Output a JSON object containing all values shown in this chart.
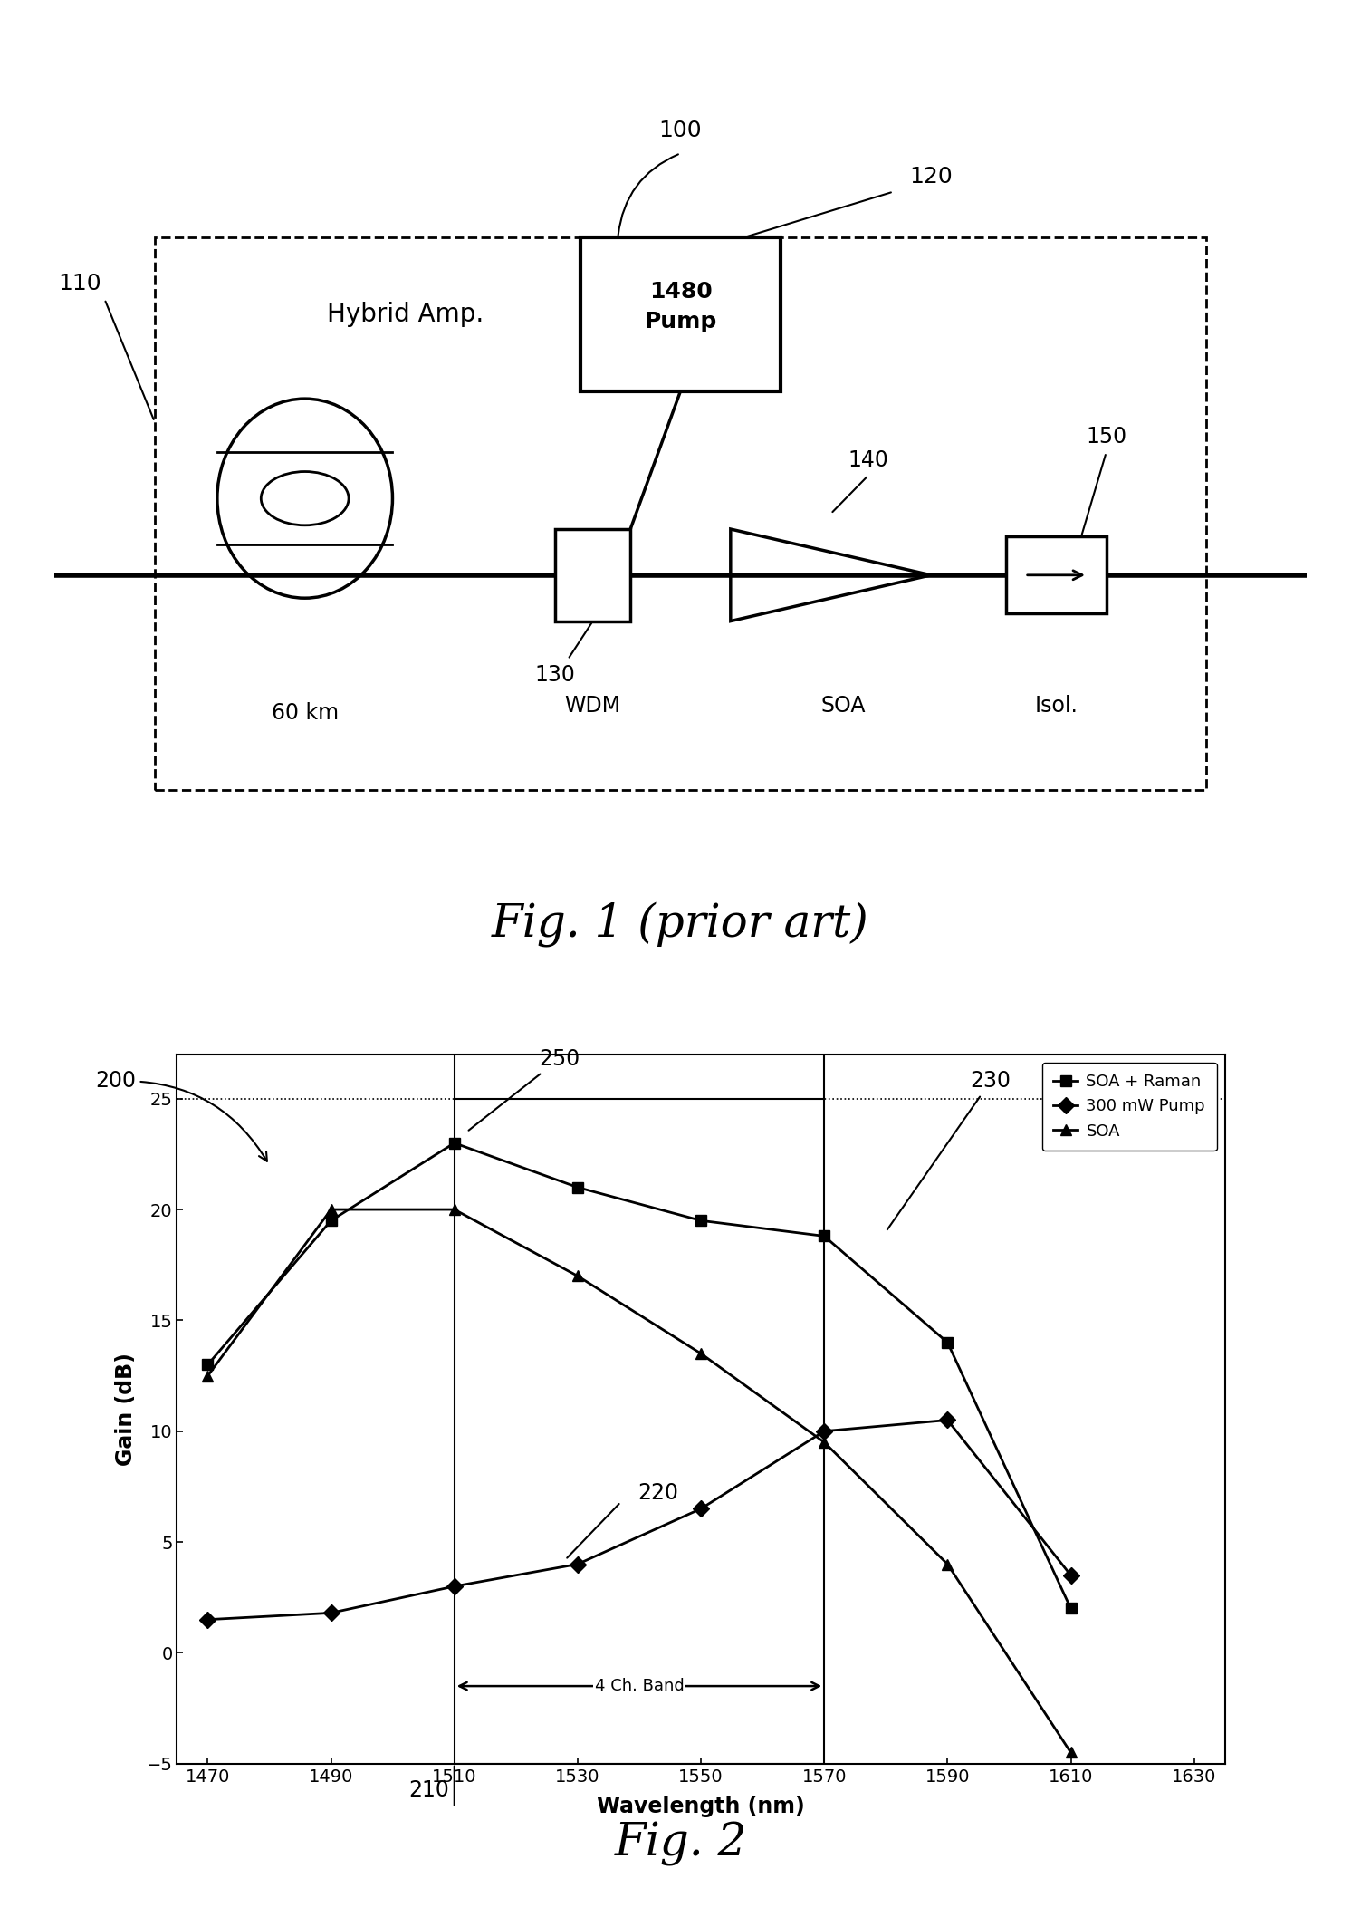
{
  "fig1_title": "Fig. 1 (prior art)",
  "fig2_title": "Fig. 2",
  "diagram": {
    "box_label": "Hybrid Amp.",
    "pump_label": "1480\nPump",
    "labels": [
      "60 km",
      "WDM",
      "SOA",
      "Isol."
    ],
    "ref_numbers": [
      "100",
      "110",
      "120",
      "130",
      "140",
      "150"
    ]
  },
  "graph": {
    "soa_raman_x": [
      1470,
      1490,
      1510,
      1530,
      1550,
      1570,
      1590,
      1610
    ],
    "soa_raman_y": [
      13.0,
      19.5,
      23.0,
      21.0,
      19.5,
      18.8,
      14.0,
      2.0
    ],
    "pump300_x": [
      1470,
      1490,
      1510,
      1530,
      1550,
      1570,
      1590,
      1610
    ],
    "pump300_y": [
      1.5,
      1.8,
      3.0,
      4.0,
      6.5,
      10.0,
      10.5,
      3.5
    ],
    "soa_x": [
      1470,
      1490,
      1510,
      1530,
      1550,
      1570,
      1590,
      1610
    ],
    "soa_y": [
      12.5,
      20.0,
      20.0,
      17.0,
      13.5,
      9.5,
      4.0,
      -4.5
    ],
    "xlabel": "Wavelength (nm)",
    "ylabel": "Gain (dB)",
    "xlim": [
      1465,
      1635
    ],
    "ylim": [
      -5,
      27
    ],
    "xticks": [
      1470,
      1490,
      1510,
      1530,
      1550,
      1570,
      1590,
      1610,
      1630
    ],
    "yticks": [
      -5,
      0,
      5,
      10,
      15,
      20,
      25
    ],
    "band_start": 1510,
    "band_end": 1570,
    "dotted_line_y": 25,
    "legend": [
      "SOA + Raman",
      "300 mW Pump",
      "SOA"
    ],
    "band_label": "4 Ch. Band"
  }
}
